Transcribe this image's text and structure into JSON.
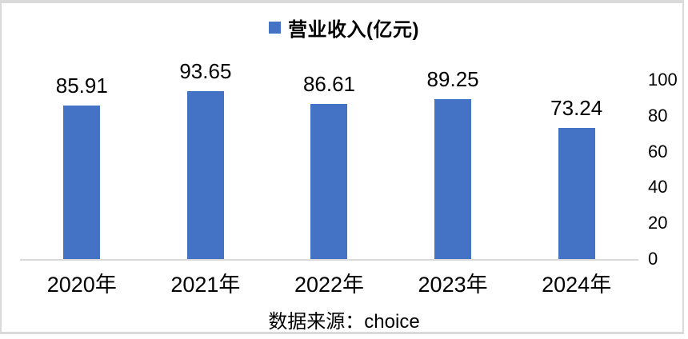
{
  "frame": {
    "border_color": "#dadada"
  },
  "legend": {
    "label": "营业收入(亿元)",
    "marker_color": "#4472C4"
  },
  "source": {
    "text": "数据来源：choice"
  },
  "chart_data": {
    "type": "bar",
    "title": "营业收入(亿元)",
    "categories": [
      "2020年",
      "2021年",
      "2022年",
      "2023年",
      "2024年"
    ],
    "values": [
      85.91,
      93.65,
      86.61,
      89.25,
      73.24
    ],
    "data_labels": [
      "85.91",
      "93.65",
      "86.61",
      "89.25",
      "73.24"
    ],
    "xlabel": "",
    "ylabel": "",
    "ylim": [
      0,
      100
    ],
    "yticks": [
      0,
      20,
      40,
      60,
      80,
      100
    ],
    "axis_side": "right",
    "grid": false,
    "legend_entries": [
      "营业收入(亿元)"
    ],
    "legend_position": "top-center",
    "bar_color": "#4472C4",
    "baseline_color": "#d9d9d9",
    "source": "数据来源：choice"
  }
}
